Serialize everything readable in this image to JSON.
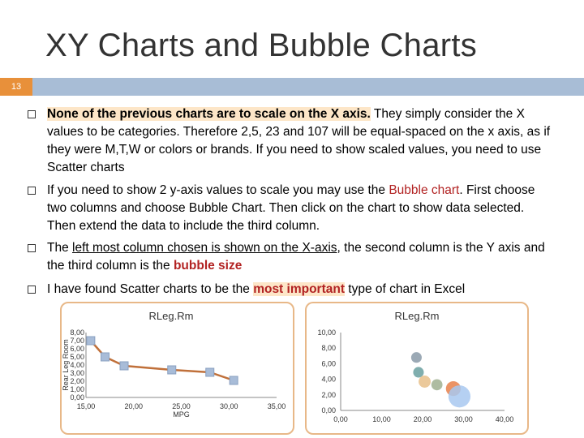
{
  "slide": {
    "title": "XY Charts and Bubble Charts",
    "number": "13"
  },
  "bullets": [
    {
      "parts": [
        {
          "t": "None of the previous charts are to scale on the X axis.",
          "cls": "bold hlbg"
        },
        {
          "t": " They simply consider the  X values to be categories. Therefore 2,5, 23 and 107 will be equal-spaced on the x axis, as if they were M,T,W or colors or brands. If you need to show scaled values, you need to use Scatter charts",
          "cls": ""
        }
      ]
    },
    {
      "parts": [
        {
          "t": "If you need to show 2 y-axis values to scale you may use the ",
          "cls": ""
        },
        {
          "t": "Bubble chart",
          "cls": "red"
        },
        {
          "t": ". First choose two columns and choose Bubble Chart. Then click on the chart to show data selected. Then extend the data to include the third column.",
          "cls": ""
        }
      ]
    },
    {
      "parts": [
        {
          "t": "The ",
          "cls": ""
        },
        {
          "t": "left most column chosen is shown on the X-axis",
          "cls": "u"
        },
        {
          "t": ", the second column is the Y axis and the third column is the ",
          "cls": ""
        },
        {
          "t": "bubble size",
          "cls": "hl"
        }
      ]
    },
    {
      "parts": [
        {
          "t": "I have found Scatter charts to be the ",
          "cls": ""
        },
        {
          "t": "most important",
          "cls": "hl hlbg"
        },
        {
          "t": " type of chart in Excel",
          "cls": ""
        }
      ]
    }
  ],
  "colors": {
    "accent": "#e8903a",
    "bar": "#a8bdd6",
    "line": "#c0703a",
    "marker": "#a8bcd8"
  },
  "chart_data": [
    {
      "type": "line",
      "title": "RLeg.Rm",
      "xlabel": "MPG",
      "ylabel": "Rear Leg Room",
      "x": [
        15.5,
        17.0,
        19.0,
        24.0,
        28.0,
        30.5
      ],
      "y": [
        7.0,
        5.0,
        3.9,
        3.4,
        3.1,
        2.1
      ],
      "xlim": [
        15,
        35
      ],
      "ylim": [
        0,
        8
      ],
      "xticks": [
        "15,00",
        "20,00",
        "25,00",
        "30,00",
        "35,00"
      ],
      "yticks": [
        "0,00",
        "1,00",
        "2,00",
        "3,00",
        "4,00",
        "5,00",
        "6,00",
        "7,00",
        "8,00"
      ],
      "grid": false,
      "legend": false
    },
    {
      "type": "scatter",
      "title": "RLeg.Rm",
      "x": [
        18.5,
        19.0,
        20.5,
        23.5,
        27.5,
        29.0
      ],
      "y": [
        6.8,
        4.9,
        3.7,
        3.3,
        2.8,
        1.8
      ],
      "size": [
        0.5,
        0.5,
        0.8,
        0.6,
        1.5,
        4.5
      ],
      "colors": [
        "#8a9aa8",
        "#6aa0a0",
        "#e8c08a",
        "#a0b090",
        "#e8804a",
        "#a8c8f0"
      ],
      "xlim": [
        0,
        40
      ],
      "ylim": [
        0,
        10
      ],
      "xticks": [
        "0,00",
        "10,00",
        "20,00",
        "30,00",
        "40,00"
      ],
      "yticks": [
        "0,00",
        "2,00",
        "4,00",
        "6,00",
        "8,00",
        "10,00"
      ],
      "grid": false,
      "legend": false
    }
  ]
}
